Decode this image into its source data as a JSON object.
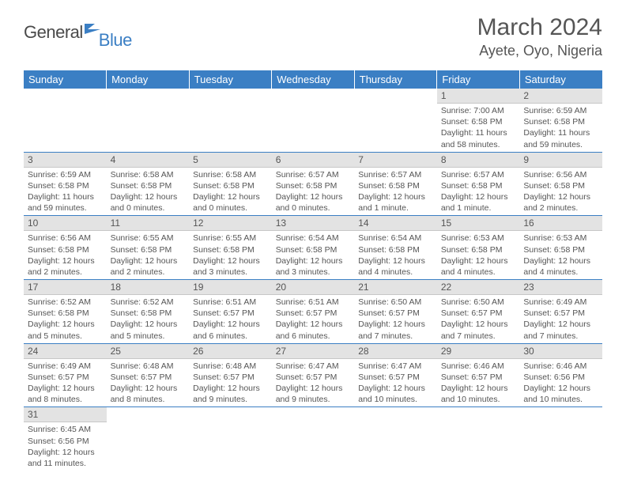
{
  "brand": {
    "text1": "General",
    "text2": "Blue"
  },
  "title": "March 2024",
  "location": "Ayete, Oyo, Nigeria",
  "header_bg": "#3b7fc4",
  "daynum_bg": "#e3e3e3",
  "weekdays": [
    "Sunday",
    "Monday",
    "Tuesday",
    "Wednesday",
    "Thursday",
    "Friday",
    "Saturday"
  ],
  "weeks": [
    [
      null,
      null,
      null,
      null,
      null,
      {
        "n": "1",
        "sr": "7:00 AM",
        "ss": "6:58 PM",
        "dl": "11 hours and 58 minutes."
      },
      {
        "n": "2",
        "sr": "6:59 AM",
        "ss": "6:58 PM",
        "dl": "11 hours and 59 minutes."
      }
    ],
    [
      {
        "n": "3",
        "sr": "6:59 AM",
        "ss": "6:58 PM",
        "dl": "11 hours and 59 minutes."
      },
      {
        "n": "4",
        "sr": "6:58 AM",
        "ss": "6:58 PM",
        "dl": "12 hours and 0 minutes."
      },
      {
        "n": "5",
        "sr": "6:58 AM",
        "ss": "6:58 PM",
        "dl": "12 hours and 0 minutes."
      },
      {
        "n": "6",
        "sr": "6:57 AM",
        "ss": "6:58 PM",
        "dl": "12 hours and 0 minutes."
      },
      {
        "n": "7",
        "sr": "6:57 AM",
        "ss": "6:58 PM",
        "dl": "12 hours and 1 minute."
      },
      {
        "n": "8",
        "sr": "6:57 AM",
        "ss": "6:58 PM",
        "dl": "12 hours and 1 minute."
      },
      {
        "n": "9",
        "sr": "6:56 AM",
        "ss": "6:58 PM",
        "dl": "12 hours and 2 minutes."
      }
    ],
    [
      {
        "n": "10",
        "sr": "6:56 AM",
        "ss": "6:58 PM",
        "dl": "12 hours and 2 minutes."
      },
      {
        "n": "11",
        "sr": "6:55 AM",
        "ss": "6:58 PM",
        "dl": "12 hours and 2 minutes."
      },
      {
        "n": "12",
        "sr": "6:55 AM",
        "ss": "6:58 PM",
        "dl": "12 hours and 3 minutes."
      },
      {
        "n": "13",
        "sr": "6:54 AM",
        "ss": "6:58 PM",
        "dl": "12 hours and 3 minutes."
      },
      {
        "n": "14",
        "sr": "6:54 AM",
        "ss": "6:58 PM",
        "dl": "12 hours and 4 minutes."
      },
      {
        "n": "15",
        "sr": "6:53 AM",
        "ss": "6:58 PM",
        "dl": "12 hours and 4 minutes."
      },
      {
        "n": "16",
        "sr": "6:53 AM",
        "ss": "6:58 PM",
        "dl": "12 hours and 4 minutes."
      }
    ],
    [
      {
        "n": "17",
        "sr": "6:52 AM",
        "ss": "6:58 PM",
        "dl": "12 hours and 5 minutes."
      },
      {
        "n": "18",
        "sr": "6:52 AM",
        "ss": "6:58 PM",
        "dl": "12 hours and 5 minutes."
      },
      {
        "n": "19",
        "sr": "6:51 AM",
        "ss": "6:57 PM",
        "dl": "12 hours and 6 minutes."
      },
      {
        "n": "20",
        "sr": "6:51 AM",
        "ss": "6:57 PM",
        "dl": "12 hours and 6 minutes."
      },
      {
        "n": "21",
        "sr": "6:50 AM",
        "ss": "6:57 PM",
        "dl": "12 hours and 7 minutes."
      },
      {
        "n": "22",
        "sr": "6:50 AM",
        "ss": "6:57 PM",
        "dl": "12 hours and 7 minutes."
      },
      {
        "n": "23",
        "sr": "6:49 AM",
        "ss": "6:57 PM",
        "dl": "12 hours and 7 minutes."
      }
    ],
    [
      {
        "n": "24",
        "sr": "6:49 AM",
        "ss": "6:57 PM",
        "dl": "12 hours and 8 minutes."
      },
      {
        "n": "25",
        "sr": "6:48 AM",
        "ss": "6:57 PM",
        "dl": "12 hours and 8 minutes."
      },
      {
        "n": "26",
        "sr": "6:48 AM",
        "ss": "6:57 PM",
        "dl": "12 hours and 9 minutes."
      },
      {
        "n": "27",
        "sr": "6:47 AM",
        "ss": "6:57 PM",
        "dl": "12 hours and 9 minutes."
      },
      {
        "n": "28",
        "sr": "6:47 AM",
        "ss": "6:57 PM",
        "dl": "12 hours and 10 minutes."
      },
      {
        "n": "29",
        "sr": "6:46 AM",
        "ss": "6:57 PM",
        "dl": "12 hours and 10 minutes."
      },
      {
        "n": "30",
        "sr": "6:46 AM",
        "ss": "6:56 PM",
        "dl": "12 hours and 10 minutes."
      }
    ],
    [
      {
        "n": "31",
        "sr": "6:45 AM",
        "ss": "6:56 PM",
        "dl": "12 hours and 11 minutes."
      },
      null,
      null,
      null,
      null,
      null,
      null
    ]
  ],
  "labels": {
    "sunrise": "Sunrise:",
    "sunset": "Sunset:",
    "daylight": "Daylight:"
  }
}
